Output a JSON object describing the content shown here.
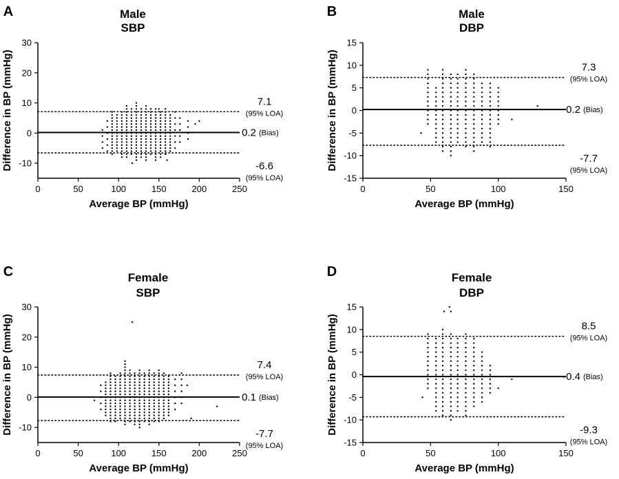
{
  "figure": {
    "colors": {
      "ink": "#000000",
      "background": "#ffffff"
    }
  },
  "chart_data": [
    {
      "panel": "A",
      "type": "scatter",
      "title_lines": [
        "Male",
        "SBP"
      ],
      "xlabel": "Average BP (mmHg)",
      "ylabel": "Difference in BP (mmHg)",
      "xlim": [
        0,
        250
      ],
      "ylim": [
        -15,
        30
      ],
      "xticks": [
        0,
        50,
        100,
        150,
        200,
        250
      ],
      "yticks": [
        -10,
        0,
        10,
        20,
        30
      ],
      "bias": {
        "value": 0.2,
        "label": "0.2",
        "note": "(Bias)"
      },
      "upper_loa": {
        "value": 7.1,
        "label": "7.1",
        "note": "(95% LOA)"
      },
      "lower_loa": {
        "value": -6.6,
        "label": "-6.6",
        "note": "(95% LOA)"
      },
      "columns": [
        {
          "x": 80,
          "ymin": -5,
          "ymax": 2,
          "step": 2
        },
        {
          "x": 86,
          "ymin": -6,
          "ymax": 5,
          "step": 2
        },
        {
          "x": 92,
          "ymin": -7,
          "ymax": 7,
          "step": 1
        },
        {
          "x": 98,
          "ymin": -6,
          "ymax": 6,
          "step": 1
        },
        {
          "x": 104,
          "ymin": -8,
          "ymax": 7,
          "step": 1
        },
        {
          "x": 110,
          "ymin": -8,
          "ymax": 9,
          "step": 1
        },
        {
          "x": 116,
          "ymin": -7,
          "ymax": 8,
          "step": 1
        },
        {
          "x": 122,
          "ymin": -9,
          "ymax": 10,
          "step": 1
        },
        {
          "x": 128,
          "ymin": -8,
          "ymax": 8,
          "step": 1
        },
        {
          "x": 134,
          "ymin": -9,
          "ymax": 9,
          "step": 1
        },
        {
          "x": 140,
          "ymin": -7,
          "ymax": 8,
          "step": 1
        },
        {
          "x": 146,
          "ymin": -9,
          "ymax": 8,
          "step": 1
        },
        {
          "x": 152,
          "ymin": -8,
          "ymax": 7,
          "step": 1
        },
        {
          "x": 158,
          "ymin": -7,
          "ymax": 8,
          "step": 1
        },
        {
          "x": 164,
          "ymin": -6,
          "ymax": 6,
          "step": 1
        },
        {
          "x": 170,
          "ymin": -5,
          "ymax": 8,
          "step": 2
        },
        {
          "x": 176,
          "ymin": -3,
          "ymax": 5,
          "step": 2
        },
        {
          "x": 186,
          "ymin": -2,
          "ymax": 4,
          "step": 2
        }
      ],
      "extra_points": [
        [
          117,
          -10
        ],
        [
          150,
          8
        ],
        [
          160,
          -9
        ],
        [
          200,
          4
        ],
        [
          195,
          3
        ]
      ]
    },
    {
      "panel": "B",
      "type": "scatter",
      "title_lines": [
        "Male",
        "DBP"
      ],
      "xlabel": "Average BP (mmHg)",
      "ylabel": "Difference in BP (mmHg)",
      "xlim": [
        0,
        150
      ],
      "ylim": [
        -15,
        15
      ],
      "xticks": [
        0,
        50,
        100,
        150
      ],
      "yticks": [
        -15,
        -10,
        -5,
        0,
        5,
        10,
        15
      ],
      "bias": {
        "value": 0.2,
        "label": "0.2",
        "note": "(Bias)"
      },
      "upper_loa": {
        "value": 7.3,
        "label": "7.3",
        "note": "(95% LOA)"
      },
      "lower_loa": {
        "value": -7.7,
        "label": "-7.7",
        "note": "(95% LOA)"
      },
      "columns": [
        {
          "x": 48,
          "ymin": -3,
          "ymax": 9,
          "step": 1
        },
        {
          "x": 54,
          "ymin": -7,
          "ymax": 5,
          "step": 1
        },
        {
          "x": 59,
          "ymin": -9,
          "ymax": 9,
          "step": 1
        },
        {
          "x": 65,
          "ymin": -9,
          "ymax": 8,
          "step": 1
        },
        {
          "x": 70,
          "ymin": -7,
          "ymax": 8,
          "step": 1
        },
        {
          "x": 76,
          "ymin": -8,
          "ymax": 9,
          "step": 1
        },
        {
          "x": 82,
          "ymin": -9,
          "ymax": 8,
          "step": 1
        },
        {
          "x": 88,
          "ymin": -7,
          "ymax": 6,
          "step": 1
        },
        {
          "x": 94,
          "ymin": -8,
          "ymax": 6,
          "step": 1
        },
        {
          "x": 100,
          "ymin": -3,
          "ymax": 5,
          "step": 1
        }
      ],
      "extra_points": [
        [
          43,
          -5
        ],
        [
          65,
          -10
        ],
        [
          110,
          -2
        ],
        [
          129,
          1
        ]
      ]
    },
    {
      "panel": "C",
      "type": "scatter",
      "title_lines": [
        "Female",
        "SBP"
      ],
      "xlabel": "Average BP (mmHg)",
      "ylabel": "Difference in BP (mmHg)",
      "xlim": [
        0,
        250
      ],
      "ylim": [
        -15,
        30
      ],
      "xticks": [
        0,
        50,
        100,
        150,
        200,
        250
      ],
      "yticks": [
        -10,
        0,
        10,
        20,
        30
      ],
      "bias": {
        "value": 0.1,
        "label": "0.1",
        "note": "(Bias)"
      },
      "upper_loa": {
        "value": 7.4,
        "label": "7.4",
        "note": "(95% LOA)"
      },
      "lower_loa": {
        "value": -7.7,
        "label": "-7.7",
        "note": "(95% LOA)"
      },
      "columns": [
        {
          "x": 78,
          "ymin": -4,
          "ymax": 4,
          "step": 2
        },
        {
          "x": 84,
          "ymin": -6,
          "ymax": 5,
          "step": 1
        },
        {
          "x": 90,
          "ymin": -8,
          "ymax": 8,
          "step": 1
        },
        {
          "x": 96,
          "ymin": -8,
          "ymax": 7,
          "step": 1
        },
        {
          "x": 102,
          "ymin": -7,
          "ymax": 8,
          "step": 1
        },
        {
          "x": 108,
          "ymin": -9,
          "ymax": 12,
          "step": 1
        },
        {
          "x": 114,
          "ymin": -8,
          "ymax": 9,
          "step": 1
        },
        {
          "x": 120,
          "ymin": -9,
          "ymax": 8,
          "step": 1
        },
        {
          "x": 126,
          "ymin": -10,
          "ymax": 9,
          "step": 1
        },
        {
          "x": 132,
          "ymin": -8,
          "ymax": 8,
          "step": 1
        },
        {
          "x": 138,
          "ymin": -9,
          "ymax": 9,
          "step": 1
        },
        {
          "x": 144,
          "ymin": -8,
          "ymax": 8,
          "step": 1
        },
        {
          "x": 150,
          "ymin": -8,
          "ymax": 9,
          "step": 1
        },
        {
          "x": 156,
          "ymin": -7,
          "ymax": 8,
          "step": 1
        },
        {
          "x": 162,
          "ymin": -6,
          "ymax": 7,
          "step": 1
        },
        {
          "x": 170,
          "ymin": -4,
          "ymax": 6,
          "step": 2
        },
        {
          "x": 178,
          "ymin": -2,
          "ymax": 9,
          "step": 2
        }
      ],
      "extra_points": [
        [
          117,
          25
        ],
        [
          70,
          -1
        ],
        [
          185,
          4
        ],
        [
          222,
          -3
        ],
        [
          190,
          -7
        ]
      ]
    },
    {
      "panel": "D",
      "type": "scatter",
      "title_lines": [
        "Female",
        "DBP"
      ],
      "xlabel": "Average BP (mmHg)",
      "ylabel": "Difference in BP (mmHg)",
      "xlim": [
        0,
        150
      ],
      "ylim": [
        -15,
        15
      ],
      "xticks": [
        0,
        50,
        100,
        150
      ],
      "yticks": [
        -15,
        -10,
        -5,
        0,
        5,
        10,
        15
      ],
      "bias": {
        "value": -0.4,
        "label": "-0.4",
        "note": "(Bias)"
      },
      "upper_loa": {
        "value": 8.5,
        "label": "8.5",
        "note": "(95% LOA)"
      },
      "lower_loa": {
        "value": -9.3,
        "label": "-9.3",
        "note": "(95% LOA)"
      },
      "columns": [
        {
          "x": 48,
          "ymin": -3,
          "ymax": 9,
          "step": 1
        },
        {
          "x": 54,
          "ymin": -8,
          "ymax": 8,
          "step": 1
        },
        {
          "x": 59,
          "ymin": -9,
          "ymax": 10,
          "step": 1
        },
        {
          "x": 65,
          "ymin": -10,
          "ymax": 9,
          "step": 1
        },
        {
          "x": 70,
          "ymin": -8,
          "ymax": 8,
          "step": 1
        },
        {
          "x": 76,
          "ymin": -9,
          "ymax": 9,
          "step": 1
        },
        {
          "x": 82,
          "ymin": -7,
          "ymax": 8,
          "step": 1
        },
        {
          "x": 88,
          "ymin": -6,
          "ymax": 5,
          "step": 1
        },
        {
          "x": 94,
          "ymin": -4,
          "ymax": 2,
          "step": 1
        }
      ],
      "extra_points": [
        [
          44,
          -5
        ],
        [
          60,
          14
        ],
        [
          64,
          15
        ],
        [
          65,
          14
        ],
        [
          110,
          -1
        ],
        [
          100,
          -3
        ]
      ]
    }
  ]
}
